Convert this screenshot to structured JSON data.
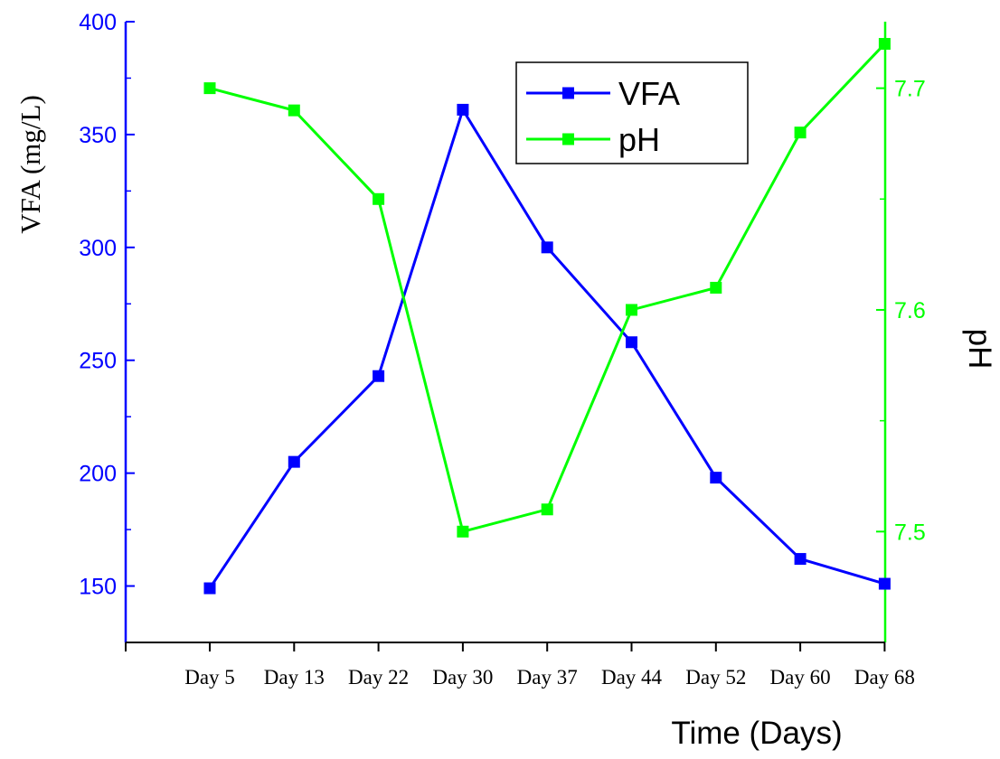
{
  "chart_data": {
    "type": "line",
    "categories": [
      "Day 5",
      "Day 13",
      "Day 22",
      "Day 30",
      "Day 37",
      "Day 44",
      "Day 52",
      "Day 60",
      "Day 68"
    ],
    "series": [
      {
        "name": "VFA",
        "axis": "left",
        "color": "#0000ff",
        "values": [
          149,
          205,
          243,
          361,
          300,
          258,
          198,
          162,
          151
        ]
      },
      {
        "name": "pH",
        "axis": "right",
        "color": "#00ff00",
        "values": [
          7.7,
          7.69,
          7.65,
          7.5,
          7.51,
          7.6,
          7.61,
          7.68,
          7.72
        ]
      }
    ],
    "y_left": {
      "label": "VFA (mg/L)",
      "range": [
        125,
        400
      ],
      "ticks": [
        150,
        200,
        250,
        300,
        350,
        400
      ],
      "color": "#0000ff"
    },
    "y_right": {
      "label": "pH",
      "range": [
        7.45,
        7.73
      ],
      "ticks": [
        "7.5",
        "7.6",
        "7.7"
      ],
      "minor_ticks": [
        7.55,
        7.65
      ],
      "color": "#00ff00"
    },
    "x_axis": {
      "label": "Time (Days)"
    },
    "legend": {
      "placement": "top-right",
      "entries": [
        "VFA",
        "pH"
      ]
    },
    "grid": false,
    "marker": "square"
  }
}
